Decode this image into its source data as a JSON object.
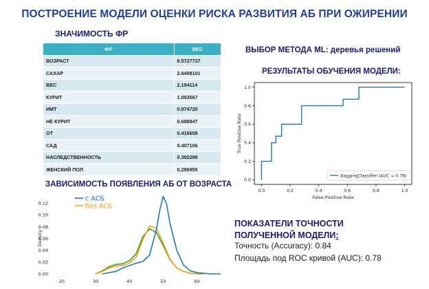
{
  "main_title": "ПОСТРОЕНИЕ МОДЕЛИ ОЦЕНКИ РИСКА РАЗВИТИЯ АБ ПРИ ОЖИРЕНИИ",
  "importance": {
    "title": "ЗНАЧИМОСТЬ ФР",
    "headers": [
      "ФР",
      "ВЕС"
    ],
    "rows": [
      {
        "factor": "ВОЗРАСТ",
        "weight": "6.5727737"
      },
      {
        "factor": "САХАР",
        "weight": "2.6408101"
      },
      {
        "factor": "ВЕС",
        "weight": "2.194114"
      },
      {
        "factor": "КУРИТ",
        "weight": "1.093567"
      },
      {
        "factor": "ИМТ",
        "weight": "0.874720"
      },
      {
        "factor": "НЕ КУРИТ",
        "weight": "0.688947"
      },
      {
        "factor": "ОТ",
        "weight": "0.416608"
      },
      {
        "factor": "САД",
        "weight": "0.407106"
      },
      {
        "factor": "НАСЛЕДСТВЕННОСТЬ",
        "weight": "0.392299"
      },
      {
        "factor": "ЖЕНСКИЙ ПОЛ",
        "weight": "0.296955"
      }
    ]
  },
  "age_dependence": {
    "title": "ЗАВИСИМОСТЬ ПОЯВЛЕНИЯ АБ ОТ ВОЗРАСТА"
  },
  "ml_method": "ВЫБОР МЕТОДА ML: деревья решений",
  "results_title": "РЕЗУЛЬТАТЫ ОБУЧЕНИЯ МОДЕЛИ:",
  "accuracy": {
    "title_main": "ПОКАЗАТЕЛИ ТОЧНОСТИ ПОЛУЧЕННОЙ МОДЕЛИ",
    "title_colon": ":",
    "line1": "Точность (Accuracy): 0.84",
    "line2": "Площадь под ROC кривой (AUC): 0.78"
  },
  "chart_data": [
    {
      "type": "line",
      "title": "",
      "xlabel": "",
      "ylabel": "Density",
      "xlim": [
        17,
        68
      ],
      "ylim": [
        0,
        0.135
      ],
      "xticks": [
        "20",
        "30",
        "40",
        "50",
        "60"
      ],
      "yticks": [
        "0.00",
        "0.02",
        "0.04",
        "0.06",
        "0.08",
        "0.10",
        "0.12"
      ],
      "legend_position": "top-left",
      "colors": {
        "с АСБ": "#1f77b4",
        "без АСБ": "#ff9f0e",
        "extra": "#2ca02c"
      },
      "series": [
        {
          "name": "с АСБ",
          "x": [
            32,
            36,
            38,
            40,
            42,
            44,
            46,
            48,
            49,
            50,
            51,
            52,
            54,
            56,
            58,
            60,
            64,
            67
          ],
          "y": [
            0.0,
            0.004,
            0.01,
            0.014,
            0.018,
            0.021,
            0.032,
            0.076,
            0.108,
            0.131,
            0.118,
            0.085,
            0.04,
            0.015,
            0.005,
            0.002,
            0.0,
            0.0
          ]
        },
        {
          "name": "без АСБ",
          "x": [
            30,
            32,
            34,
            36,
            38,
            40,
            42,
            44,
            46,
            48,
            50,
            52,
            54,
            56,
            58,
            60,
            62
          ],
          "y": [
            0.0,
            0.004,
            0.01,
            0.013,
            0.014,
            0.018,
            0.028,
            0.058,
            0.081,
            0.077,
            0.052,
            0.025,
            0.01,
            0.004,
            0.001,
            0.0,
            0.0
          ]
        },
        {
          "name": "",
          "x": [
            30,
            32,
            34,
            36,
            38,
            40,
            42,
            44,
            46,
            48,
            50,
            52,
            54,
            56,
            58,
            60,
            62
          ],
          "y": [
            0.0,
            0.005,
            0.012,
            0.016,
            0.017,
            0.022,
            0.034,
            0.063,
            0.076,
            0.07,
            0.048,
            0.024,
            0.01,
            0.004,
            0.001,
            0.0,
            0.0
          ]
        }
      ]
    },
    {
      "type": "line",
      "title": "",
      "xlabel": "False Positive Rate",
      "ylabel": "True Positive Rate",
      "xlim": [
        -0.05,
        1.05
      ],
      "ylim": [
        -0.05,
        1.05
      ],
      "xticks": [
        "0.0",
        "0.2",
        "0.4",
        "0.6",
        "0.8",
        "1.0"
      ],
      "yticks": [
        "0.0",
        "0.2",
        "0.4",
        "0.6",
        "0.8",
        "1.0"
      ],
      "legend_position": "bottom-right",
      "colors": {
        "roc": "#1f77b4"
      },
      "series": [
        {
          "name": "BaggingClassifier (AUC = 0.78)",
          "x": [
            0.0,
            0.0,
            0.07,
            0.07,
            0.1,
            0.1,
            0.14,
            0.14,
            0.28,
            0.28,
            0.57,
            0.57,
            0.68,
            0.68,
            1.0
          ],
          "y": [
            0.0,
            0.2,
            0.2,
            0.4,
            0.4,
            0.47,
            0.47,
            0.6,
            0.6,
            0.8,
            0.8,
            0.87,
            0.87,
            1.0,
            1.0
          ]
        }
      ]
    }
  ]
}
